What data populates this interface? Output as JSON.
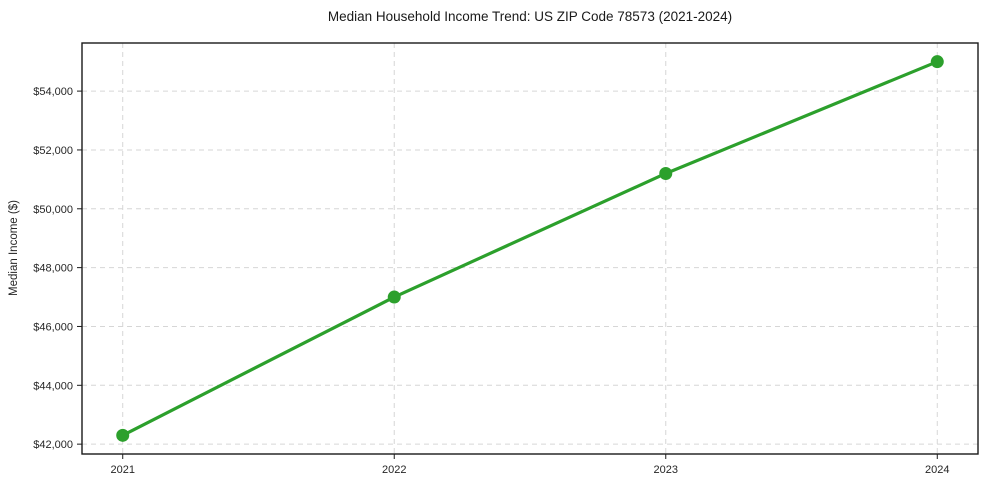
{
  "chart_data": {
    "type": "line",
    "title": "Median Household Income Trend: US ZIP Code 78573 (2021-2024)",
    "xlabel": "",
    "ylabel": "Median Income ($)",
    "x": [
      2021,
      2022,
      2023,
      2024
    ],
    "series": [
      {
        "name": "Median Household Income",
        "values": [
          42300,
          47000,
          51200,
          55000
        ]
      }
    ],
    "xticks": [
      2021,
      2022,
      2023,
      2024
    ],
    "xtick_labels": [
      "2021",
      "2022",
      "2023",
      "2024"
    ],
    "yticks": [
      42000,
      44000,
      46000,
      48000,
      50000,
      52000,
      54000
    ],
    "ytick_labels": [
      "$42,000",
      "$44,000",
      "$46,000",
      "$48,000",
      "$50,000",
      "$52,000",
      "$54,000"
    ],
    "xlim": [
      2020.85,
      2024.15
    ],
    "ylim": [
      41665,
      55635
    ],
    "grid": true,
    "grid_style": "dashed",
    "legend": "none",
    "line_color": "#2ca02c",
    "marker": "circle",
    "marker_radius": 6.5,
    "line_width": 3.2
  }
}
